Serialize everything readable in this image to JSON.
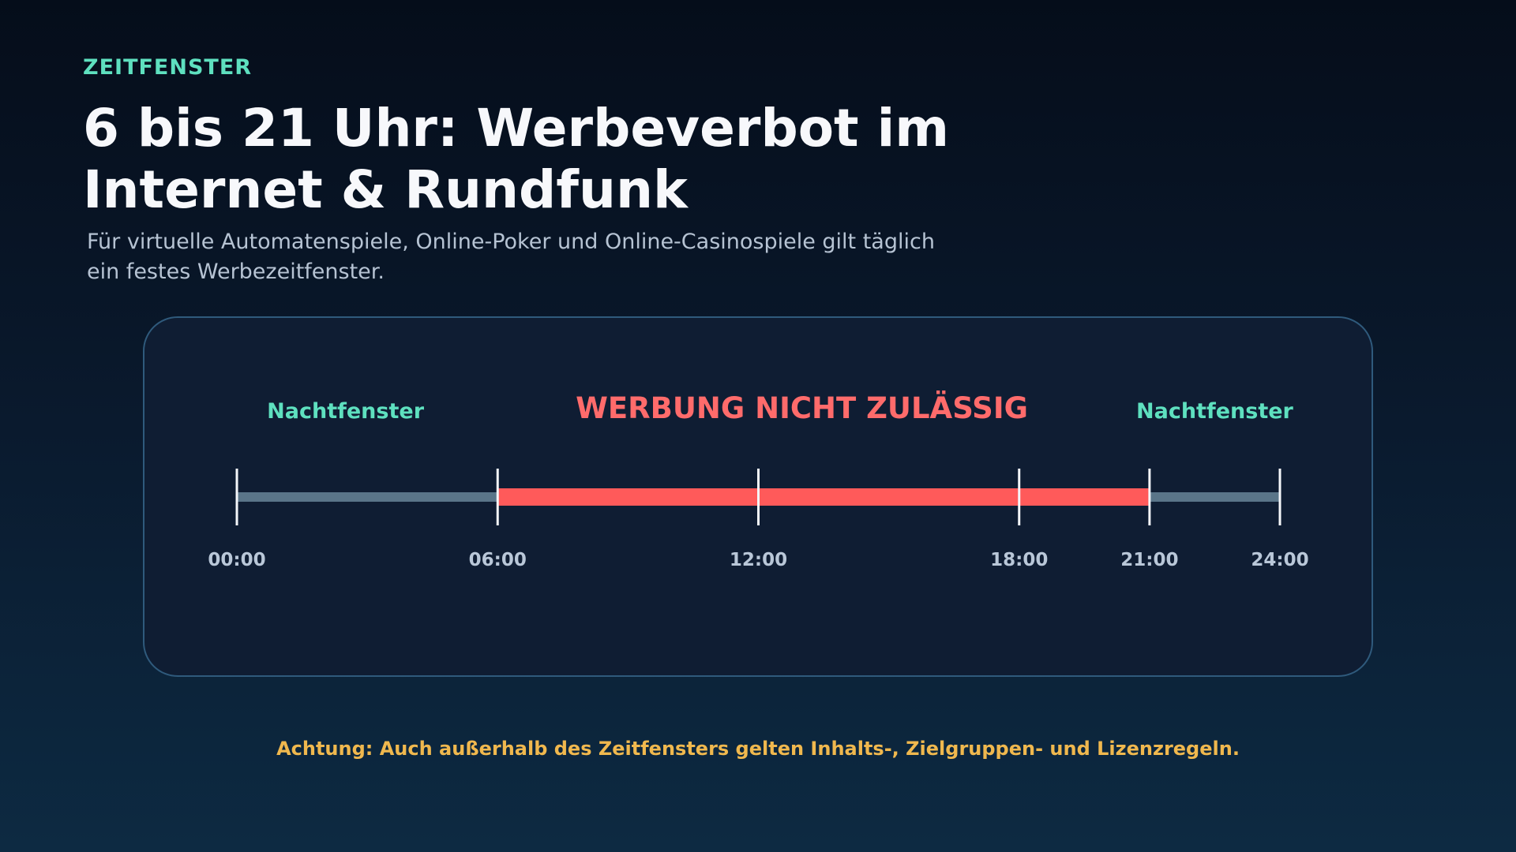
{
  "header": {
    "eyebrow": "ZEITFENSTER",
    "title": "6 bis 21 Uhr: Werbeverbot im Internet & Rundfunk",
    "subtitle": "Für virtuelle Automatenspiele, Online-Poker und Online-Casinospiele gilt täglich ein festes Werbezeitfenster."
  },
  "timeline": {
    "axis_start": 0,
    "axis_end": 24,
    "ticks": [
      {
        "hour": 0,
        "label": "00:00"
      },
      {
        "hour": 6,
        "label": "06:00"
      },
      {
        "hour": 12,
        "label": "12:00"
      },
      {
        "hour": 18,
        "label": "18:00"
      },
      {
        "hour": 21,
        "label": "21:00"
      },
      {
        "hour": 24,
        "label": "24:00"
      }
    ],
    "segments": [
      {
        "start": 0,
        "end": 6,
        "kind": "night",
        "color": "#5a7589"
      },
      {
        "start": 6,
        "end": 21,
        "kind": "ban",
        "color": "#ff5a5a"
      },
      {
        "start": 21,
        "end": 24,
        "kind": "night",
        "color": "#5a7589"
      }
    ],
    "zone_labels": [
      {
        "text": "Nachtfenster",
        "center_hour": 2.5,
        "kind": "night"
      },
      {
        "text": "WERBUNG NICHT ZULÄSSIG",
        "center_hour": 13,
        "kind": "ban"
      },
      {
        "text": "Nachtfenster",
        "center_hour": 22.5,
        "kind": "night"
      }
    ]
  },
  "footer": {
    "warning": "Achtung: Auch außerhalb des Zeitfensters gelten Inhalts-, Zielgruppen- und Lizenzregeln."
  },
  "colors": {
    "accent_teal": "#5ee0bf",
    "ban_red": "#ff5a5a",
    "warning_yellow": "#f0b84e",
    "night_gray": "#5a7589"
  }
}
